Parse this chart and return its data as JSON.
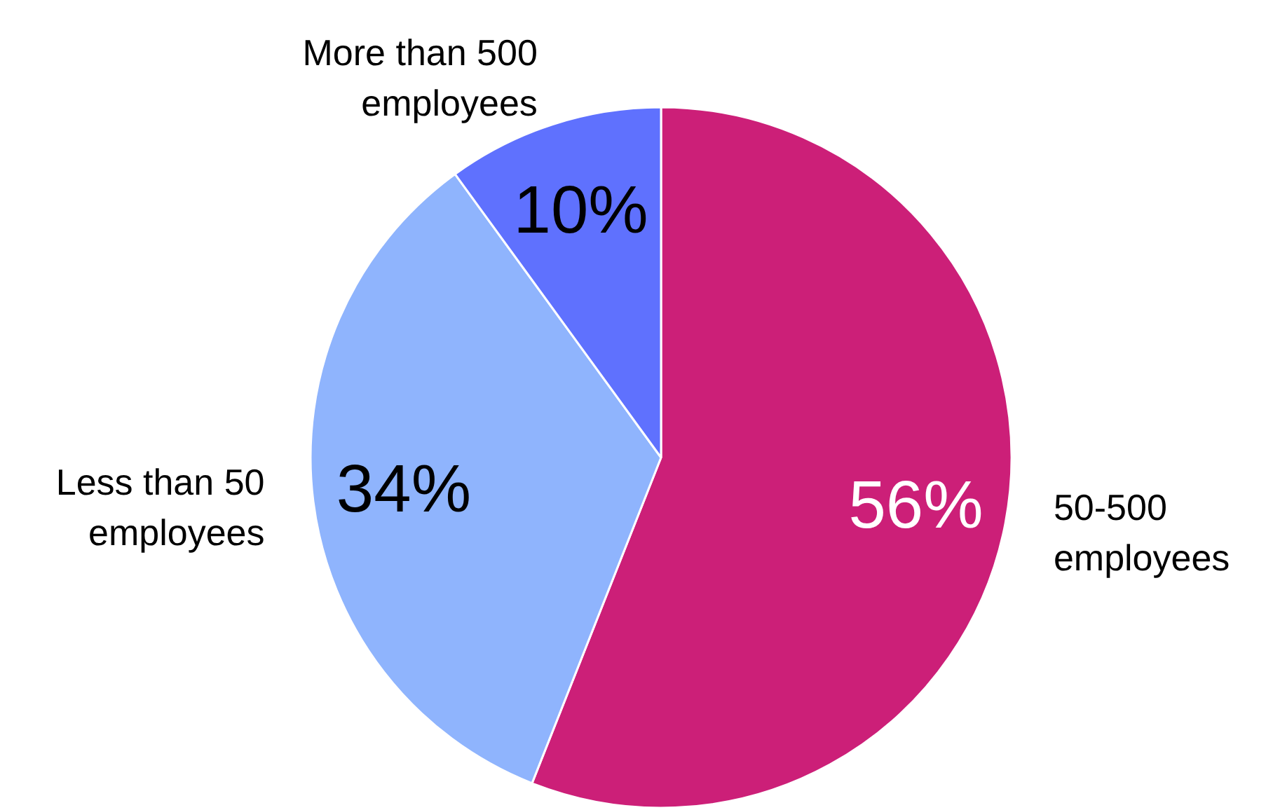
{
  "chart_data": {
    "type": "pie",
    "categories": [
      "50-500\nemployees",
      "Less than 50\nemployees",
      "More than 500\nemployees"
    ],
    "values": [
      56,
      34,
      10
    ],
    "colors": [
      "#cc1f78",
      "#8fb4fd",
      "#5f71fe"
    ],
    "value_labels": [
      "56%",
      "34%",
      "10%"
    ]
  }
}
